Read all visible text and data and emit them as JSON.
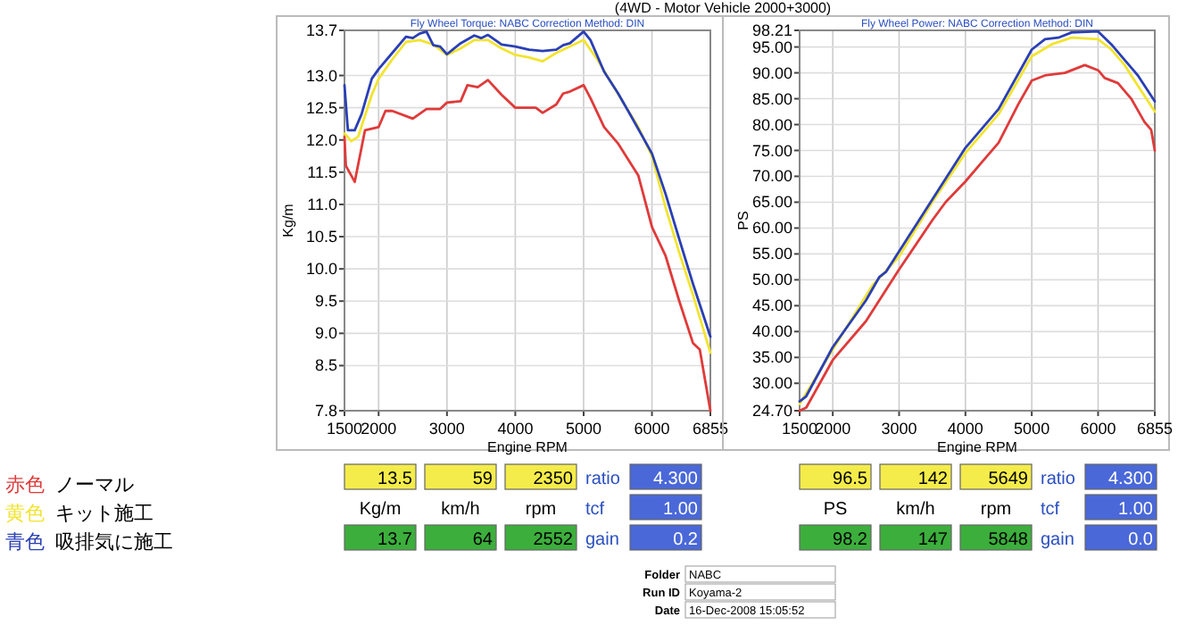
{
  "chart_data": [
    {
      "type": "line",
      "title": "(4WD - Motor Vehicle 2000+3000)",
      "subtitle": "Fly Wheel Torque: NABC     Correction Method: DIN",
      "xlabel": "Engine RPM",
      "ylabel": "Kg/m",
      "xlim": [
        1500,
        6855
      ],
      "xticks": [
        1500,
        2000,
        3000,
        4000,
        5000,
        6000,
        6855
      ],
      "ylim": [
        7.8,
        13.7
      ],
      "yticks": [
        7.8,
        8.5,
        {
          "value": 9,
          "label": "9.0"
        },
        9.5,
        {
          "value": 10,
          "label": "10.0"
        },
        10.5,
        {
          "value": 11,
          "label": "11.0"
        },
        11.5,
        {
          "value": 12,
          "label": "12.0"
        },
        12.5,
        {
          "value": 13,
          "label": "13.0"
        },
        13.7
      ],
      "grid": true,
      "legend": "left",
      "series": [
        {
          "name": "赤色 ノーマル",
          "color": "#e03a3a",
          "x": [
            1500,
            1520,
            1650,
            1800,
            2000,
            2100,
            2200,
            2500,
            2700,
            2900,
            3000,
            3200,
            3300,
            3450,
            3600,
            3800,
            4000,
            4300,
            4400,
            4600,
            4700,
            4800,
            5000,
            5100,
            5300,
            5500,
            5800,
            6000,
            6200,
            6400,
            6600,
            6700,
            6855
          ],
          "values": [
            12.05,
            11.6,
            11.35,
            12.15,
            12.2,
            12.45,
            12.45,
            12.33,
            12.48,
            12.48,
            12.58,
            12.6,
            12.85,
            12.82,
            12.93,
            12.7,
            12.5,
            12.5,
            12.42,
            12.55,
            12.72,
            12.75,
            12.85,
            12.65,
            12.2,
            11.95,
            11.45,
            10.65,
            10.2,
            9.5,
            8.85,
            8.75,
            7.8
          ]
        },
        {
          "name": "黄色 キット施工",
          "color": "#f2e431",
          "x": [
            1500,
            1600,
            1700,
            1900,
            2000,
            2200,
            2400,
            2600,
            2800,
            3000,
            3200,
            3400,
            3600,
            3800,
            4000,
            4200,
            4400,
            4600,
            4800,
            5000,
            5200,
            5500,
            5800,
            6000,
            6200,
            6400,
            6600,
            6855
          ],
          "values": [
            12.1,
            11.98,
            12.05,
            12.7,
            12.95,
            13.25,
            13.52,
            13.55,
            13.48,
            13.32,
            13.42,
            13.55,
            13.55,
            13.42,
            13.32,
            13.28,
            13.22,
            13.35,
            13.45,
            13.55,
            13.25,
            12.72,
            12.2,
            11.75,
            10.95,
            10.25,
            9.6,
            8.7
          ]
        },
        {
          "name": "青色 吸排気に施工",
          "color": "#2a3fb5",
          "x": [
            1500,
            1550,
            1650,
            1750,
            1900,
            2000,
            2200,
            2400,
            2500,
            2600,
            2700,
            2800,
            2900,
            3000,
            3200,
            3400,
            3500,
            3600,
            3800,
            4000,
            4200,
            4400,
            4600,
            4700,
            4800,
            5000,
            5100,
            5300,
            5500,
            5700,
            6000,
            6200,
            6400,
            6600,
            6855
          ],
          "values": [
            12.85,
            12.15,
            12.15,
            12.4,
            12.95,
            13.1,
            13.35,
            13.6,
            13.58,
            13.65,
            13.68,
            13.47,
            13.45,
            13.33,
            13.5,
            13.62,
            13.58,
            13.63,
            13.48,
            13.45,
            13.4,
            13.38,
            13.4,
            13.47,
            13.5,
            13.68,
            13.55,
            13.06,
            12.73,
            12.36,
            11.79,
            11.16,
            10.46,
            9.77,
            8.95
          ]
        }
      ],
      "annotations": [
        "13.5",
        "59",
        "2350",
        "ratio",
        "4.300",
        "Kg/m",
        "km/h",
        "rpm",
        "tcf",
        "1.00",
        "13.7",
        "64",
        "2552",
        "gain",
        "0.2",
        "Folder",
        "NABC",
        "Run ID",
        "Koyama-2",
        "Date",
        "16-Dec-2008  15:05:52"
      ]
    },
    {
      "type": "line",
      "subtitle": "Fly Wheel Power: NABC     Correction Method: DIN",
      "xlabel": "Engine RPM",
      "ylabel": "PS",
      "xlim": [
        1500,
        6855
      ],
      "xticks": [
        1500,
        2000,
        3000,
        4000,
        5000,
        6000,
        6855
      ],
      "ylim": [
        24.7,
        98.21
      ],
      "yticks": [
        {
          "value": 24.7,
          "label": "24.70"
        },
        {
          "value": 30,
          "label": "30.00"
        },
        {
          "value": 35,
          "label": "35.00"
        },
        {
          "value": 40,
          "label": "40.00"
        },
        {
          "value": 45,
          "label": "45.00"
        },
        {
          "value": 50,
          "label": "50.00"
        },
        {
          "value": 55,
          "label": "55.00"
        },
        {
          "value": 60,
          "label": "60.00"
        },
        {
          "value": 65,
          "label": "65.00"
        },
        {
          "value": 70,
          "label": "70.00"
        },
        {
          "value": 75,
          "label": "75.00"
        },
        {
          "value": 80,
          "label": "80.00"
        },
        {
          "value": 85,
          "label": "85.00"
        },
        {
          "value": 90,
          "label": "90.00"
        },
        {
          "value": 95,
          "label": "95.00"
        },
        98.21
      ],
      "grid": true,
      "series": [
        {
          "color": "#e03a3a",
          "x": [
            1500,
            1600,
            2000,
            2500,
            3000,
            3500,
            3700,
            4000,
            4300,
            4500,
            4800,
            5000,
            5200,
            5500,
            5800,
            6000,
            6100,
            6300,
            6500,
            6700,
            6800,
            6855
          ],
          "values": [
            24.7,
            25.3,
            34.5,
            42,
            52,
            61.5,
            65,
            69,
            73.5,
            76.5,
            84,
            88.5,
            89.5,
            90,
            91.5,
            90.5,
            89,
            88,
            85,
            80.5,
            79,
            75
          ]
        },
        {
          "color": "#f2e431",
          "x": [
            1500,
            2000,
            2600,
            2700,
            3000,
            3500,
            4000,
            4500,
            5000,
            5300,
            5600,
            6000,
            6200,
            6400,
            6600,
            6855
          ],
          "values": [
            26,
            36.5,
            49,
            50.3,
            54.5,
            65,
            74.5,
            82,
            93.2,
            95.5,
            96.8,
            96.5,
            94.5,
            91.5,
            87.5,
            82.5
          ]
        },
        {
          "color": "#2a3fb5",
          "x": [
            1500,
            1600,
            2000,
            2500,
            2700,
            2800,
            3000,
            3500,
            4000,
            4500,
            5000,
            5200,
            5400,
            5600,
            6000,
            6200,
            6400,
            6600,
            6855
          ],
          "values": [
            26.5,
            27.5,
            37,
            46,
            50.5,
            51.5,
            55.5,
            65.5,
            75.5,
            83,
            94.5,
            96.5,
            96.8,
            97.8,
            98,
            95.5,
            92.5,
            89.5,
            84.5
          ]
        }
      ],
      "annotations": [
        "96.5",
        "142",
        "5649",
        "ratio",
        "4.300",
        "PS",
        "km/h",
        "rpm",
        "tcf",
        "1.00",
        "98.2",
        "147",
        "5848",
        "gain",
        "0.0"
      ]
    }
  ]
}
